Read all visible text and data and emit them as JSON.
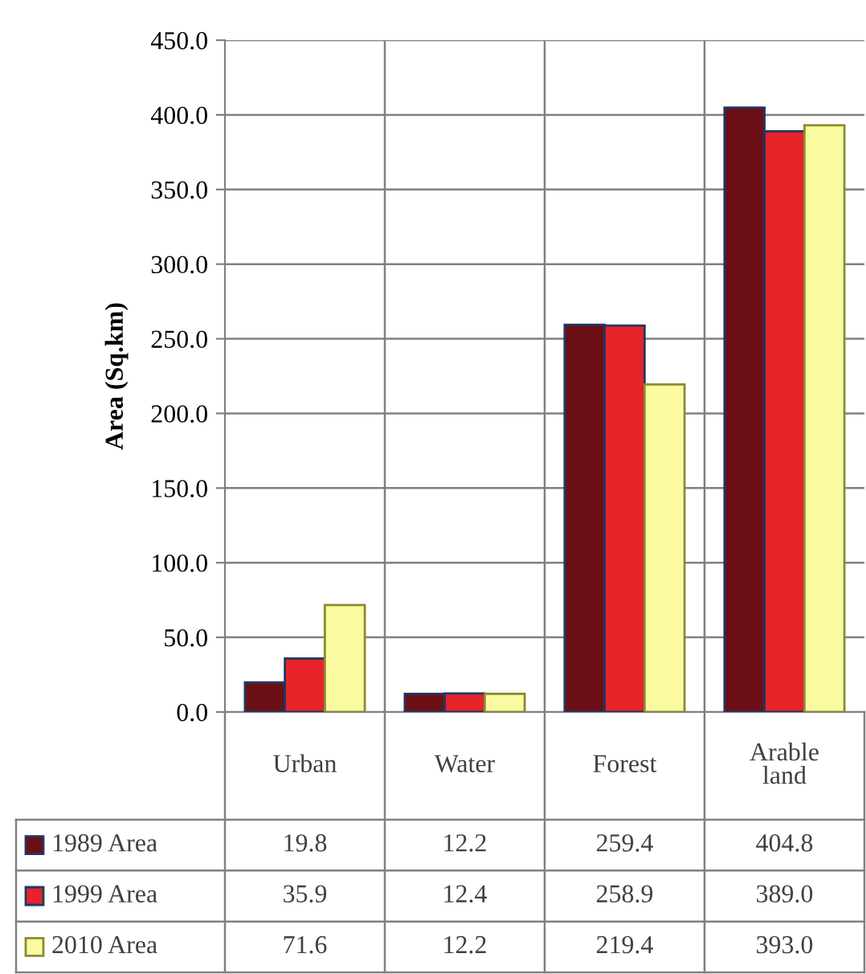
{
  "chart_data": {
    "type": "bar",
    "ylabel": "Area (Sq.km)",
    "categories": [
      "Urban",
      "Water",
      "Forest",
      "Arable land"
    ],
    "series": [
      {
        "name": "1989 Area",
        "color": "#6b0f14",
        "values": [
          19.8,
          12.2,
          259.4,
          404.8
        ],
        "value_labels": [
          "19.8",
          "12.2",
          "259.4",
          "404.8"
        ]
      },
      {
        "name": "1999 Area",
        "color": "#e8232a",
        "values": [
          35.9,
          12.4,
          258.9,
          389.0
        ],
        "value_labels": [
          "35.9",
          "12.4",
          "258.9",
          "389.0"
        ]
      },
      {
        "name": "2010 Area",
        "color": "#fafaa0",
        "values": [
          71.6,
          12.2,
          219.4,
          393.0
        ],
        "value_labels": [
          "71.6",
          "12.2",
          "219.4",
          "393.0"
        ]
      }
    ],
    "ylim": [
      0,
      450
    ],
    "yticks": [
      {
        "value": 0,
        "label": "0.0"
      },
      {
        "value": 50,
        "label": "50.0"
      },
      {
        "value": 100,
        "label": "100.0"
      },
      {
        "value": 150,
        "label": "150.0"
      },
      {
        "value": 200,
        "label": "200.0"
      },
      {
        "value": 250,
        "label": "250.0"
      },
      {
        "value": 300,
        "label": "300.0"
      },
      {
        "value": 350,
        "label": "350.0"
      },
      {
        "value": 400,
        "label": "400.0"
      },
      {
        "value": 450,
        "label": "450.0"
      }
    ],
    "grid": "y",
    "legend": "bottom"
  }
}
